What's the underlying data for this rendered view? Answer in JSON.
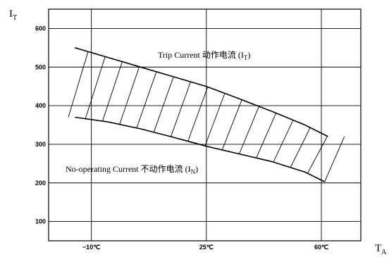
{
  "chart_data": {
    "type": "area",
    "ylabel": {
      "main": "I",
      "sub": "T"
    },
    "xlabel": {
      "main": "T",
      "sub": "A"
    },
    "x_ticks": [
      "−10℃",
      "25℃",
      "60℃"
    ],
    "x_tick_values": [
      -10,
      25,
      60
    ],
    "y_ticks": [
      "100",
      "200",
      "300",
      "400",
      "500",
      "600"
    ],
    "y_tick_values": [
      100,
      200,
      300,
      400,
      500,
      600
    ],
    "xlim": [
      -23,
      72
    ],
    "ylim": [
      50,
      650
    ],
    "grid": true,
    "series": [
      {
        "name": "Trip Current 动作电流 (Iₜ)",
        "label": {
          "text": "Trip Current 动作电流 (I",
          "sub": "T",
          "close": ")"
        },
        "x": [
          -15,
          -5,
          5,
          15,
          25,
          35,
          45,
          55,
          62
        ],
        "y": [
          550,
          525,
          500,
          475,
          450,
          418,
          385,
          350,
          320
        ]
      },
      {
        "name": "No-operating Current 不动作电流 (Iₙ)",
        "label": {
          "text": "No-operating Current 不动作电流 (I",
          "sub": "N",
          "close": ")"
        },
        "x": [
          -15,
          -5,
          5,
          15,
          25,
          35,
          45,
          55,
          61
        ],
        "y": [
          370,
          358,
          340,
          318,
          295,
          275,
          255,
          228,
          203
        ]
      }
    ]
  }
}
